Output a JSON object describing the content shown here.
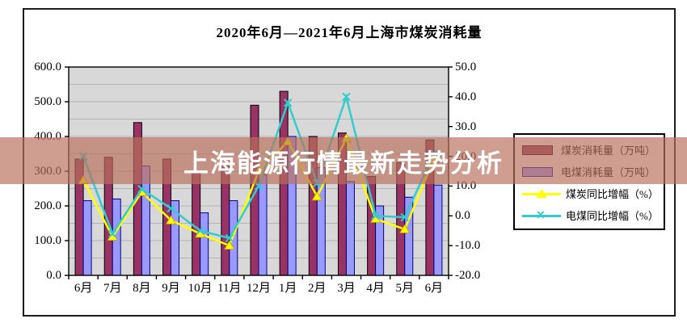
{
  "title": "2020年6月—2021年6月上海市煤炭消耗量",
  "overlay_banner": {
    "text": "上海能源行情最新走势分析",
    "bg_color": "rgba(186,112,92,0.68)",
    "text_color": "#ffffff"
  },
  "legend": {
    "items": [
      {
        "label": "煤炭消耗量（万吨）",
        "swatch": "bar",
        "series_index": 0
      },
      {
        "label": "电煤消耗量（万吨）",
        "swatch": "bar",
        "series_index": 1
      },
      {
        "label": "煤炭同比增幅（%）",
        "swatch": "line",
        "series_index": 2
      },
      {
        "label": "电煤同比增幅（%）",
        "swatch": "line",
        "series_index": 3
      }
    ]
  },
  "chart_data": {
    "type": "bar+line combo",
    "title": "2020年6月—2021年6月上海市煤炭消耗量",
    "categories": [
      "6月",
      "7月",
      "8月",
      "9月",
      "10月",
      "11月",
      "12月",
      "1月",
      "2月",
      "3月",
      "4月",
      "5月",
      "6月"
    ],
    "series": [
      {
        "name": "煤炭消耗量（万吨）",
        "type": "bar",
        "axis": "left",
        "color": "#993366",
        "border_color": "#000000",
        "values": [
          335,
          340,
          440,
          335,
          295,
          320,
          490,
          530,
          400,
          410,
          285,
          325,
          390
        ]
      },
      {
        "name": "电煤消耗量（万吨）",
        "type": "bar",
        "axis": "left",
        "color": "#9999ff",
        "border_color": "#000080",
        "values": [
          215,
          220,
          315,
          215,
          180,
          215,
          290,
          400,
          310,
          270,
          200,
          225,
          260
        ]
      },
      {
        "name": "煤炭同比增幅（%）",
        "type": "line",
        "axis": "right",
        "color": "#ffff00",
        "marker": "triangle",
        "marker_edge": "#cc9900",
        "values": [
          12,
          -7,
          8,
          -1.5,
          -6,
          -10,
          15,
          25,
          6.5,
          26,
          -1,
          -4.5,
          19
        ]
      },
      {
        "name": "电煤同比增幅（%）",
        "type": "line",
        "axis": "right",
        "color": "#33cccc",
        "marker": "x",
        "marker_edge": "#33cccc",
        "values": [
          20,
          -6,
          9,
          2.5,
          -5,
          -7.5,
          10,
          38,
          11,
          40,
          0,
          -0.5,
          21
        ]
      }
    ],
    "left_axis": {
      "min": 0,
      "max": 600,
      "step": 100,
      "decimals": 1
    },
    "right_axis": {
      "min": -20,
      "max": 50,
      "step": 10,
      "decimals": 1
    },
    "gridline_step_left": 50,
    "grid": true,
    "legend_position": "right",
    "plot_bg": "#d8d8d8",
    "gridline_color": "#b4b4b4",
    "axis_color": "#000000"
  }
}
